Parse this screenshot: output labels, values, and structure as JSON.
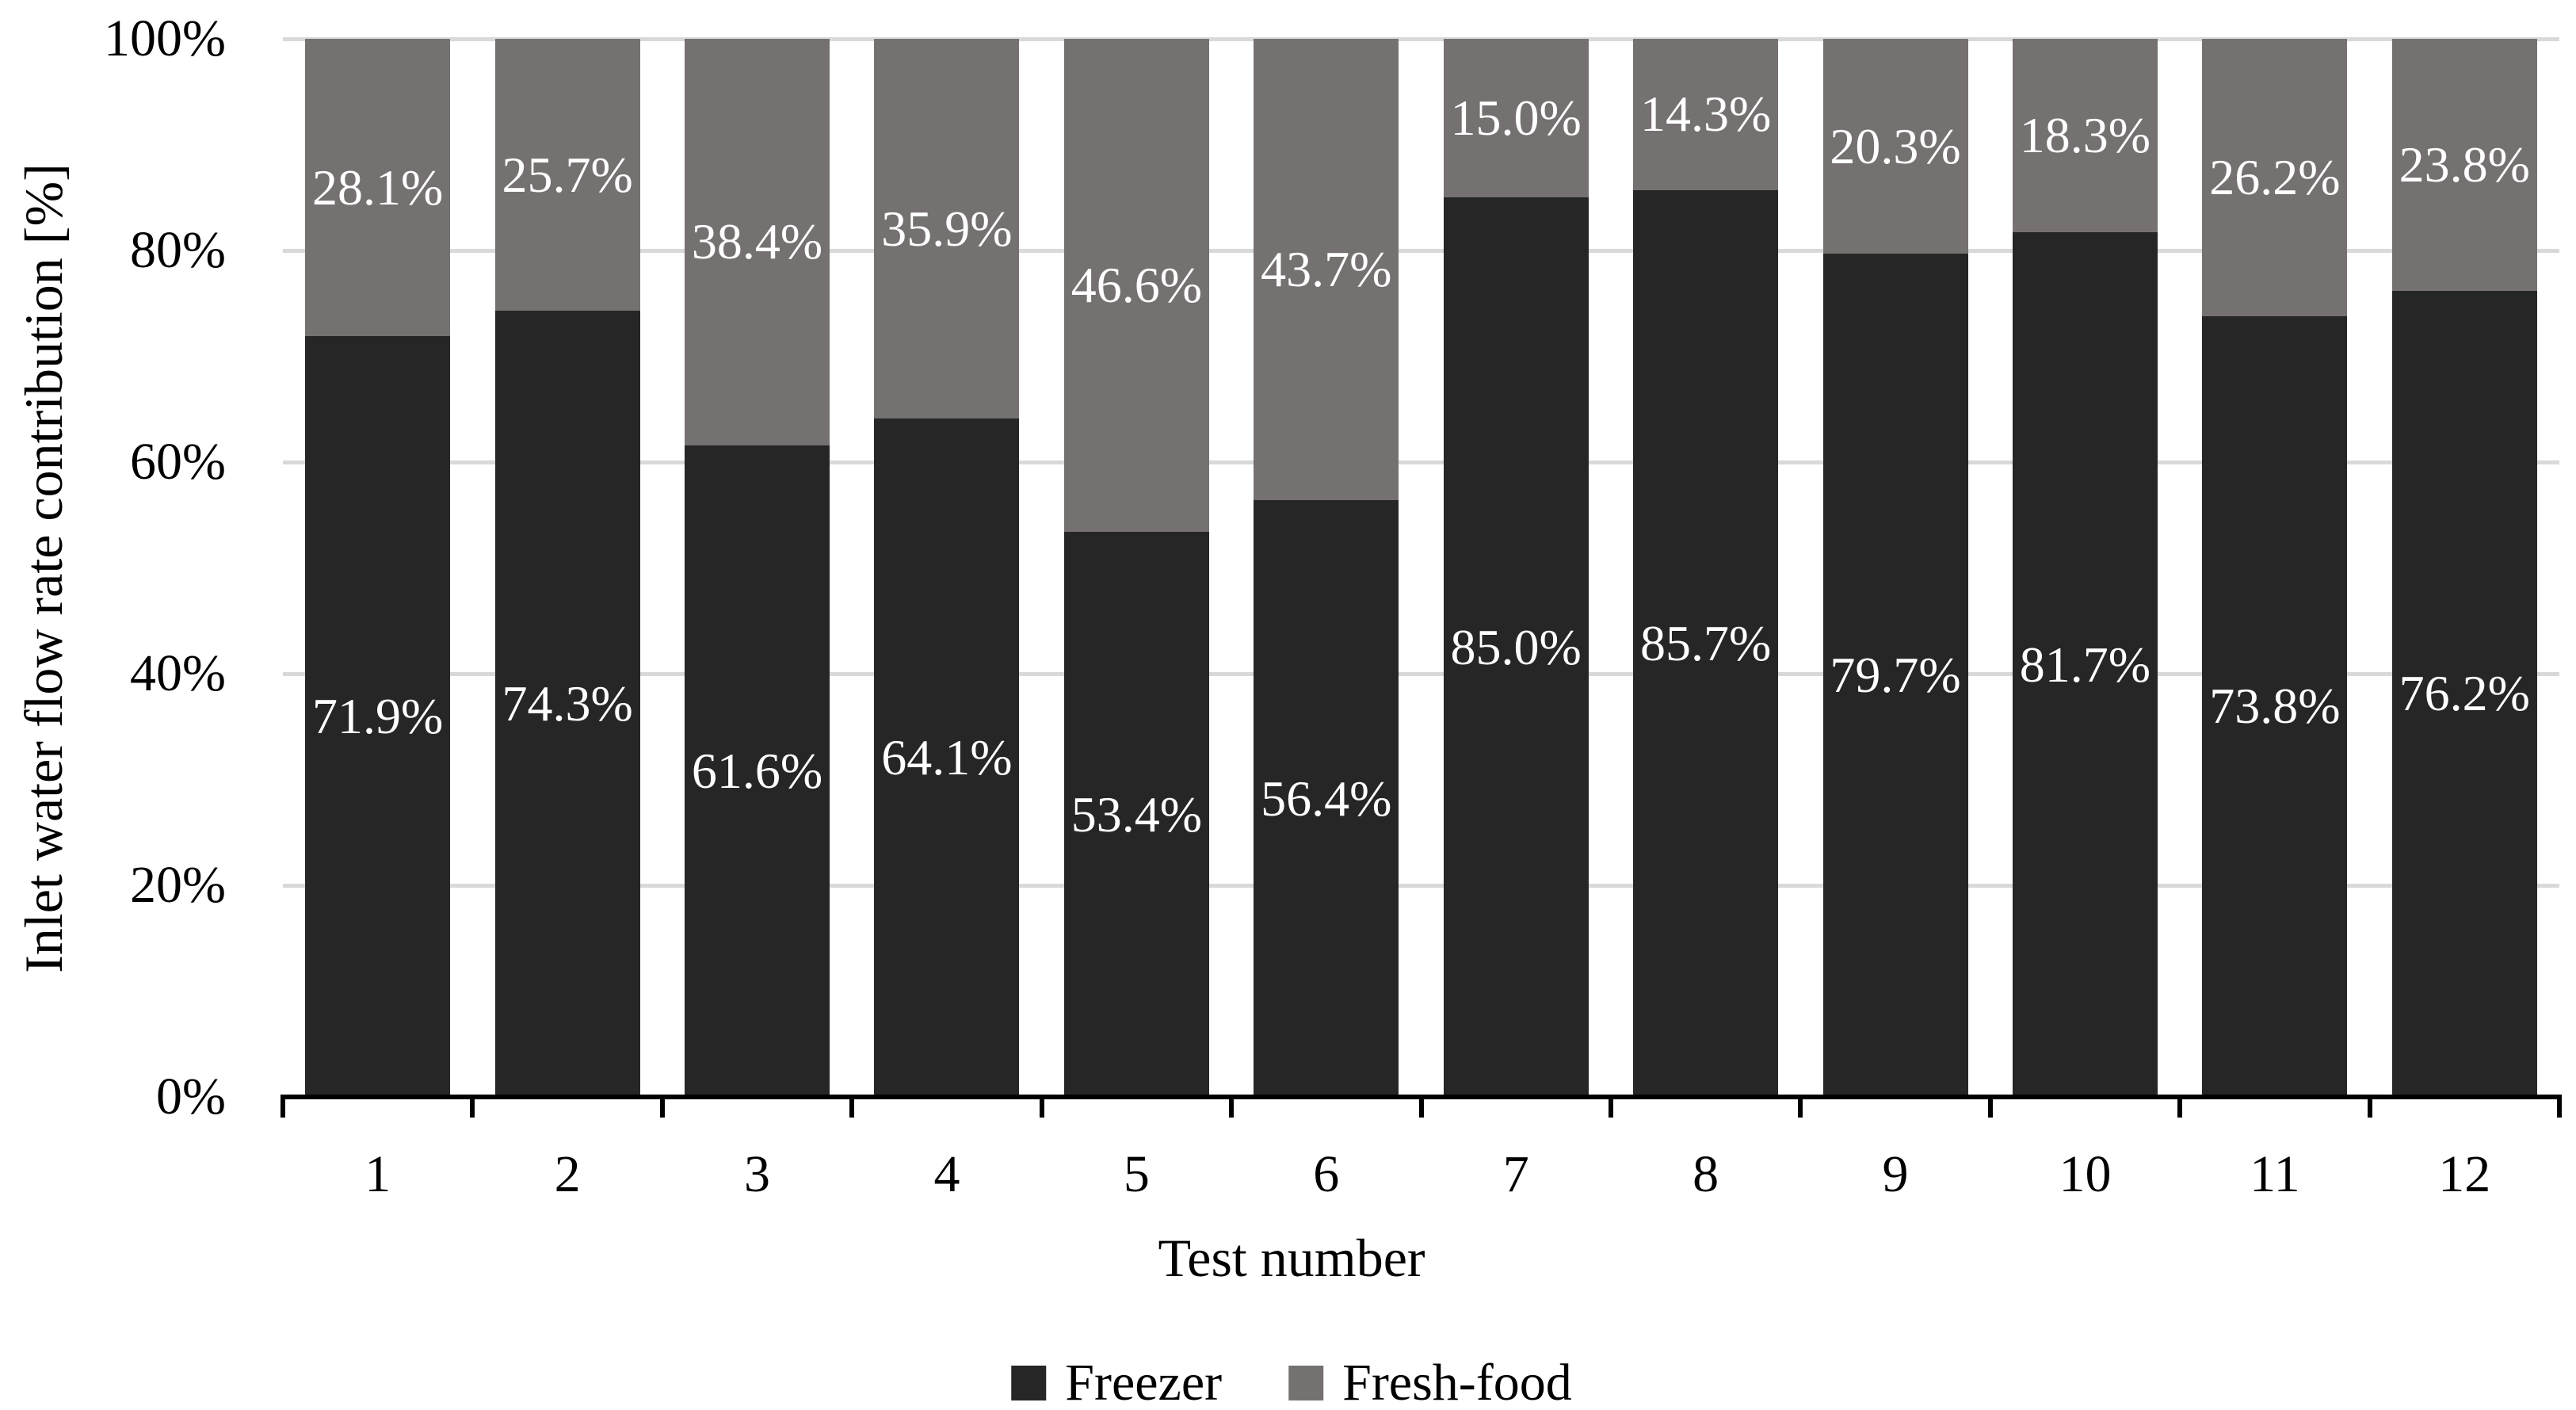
{
  "chart_data": {
    "type": "bar",
    "stacked": true,
    "orientation": "vertical",
    "title": "",
    "xlabel": "Test number",
    "ylabel": "Inlet water flow rate contribution [%]",
    "categories": [
      "1",
      "2",
      "3",
      "4",
      "5",
      "6",
      "7",
      "8",
      "9",
      "10",
      "11",
      "12"
    ],
    "series": [
      {
        "name": "Freezer",
        "color": "#262626",
        "values": [
          71.9,
          74.3,
          61.6,
          64.1,
          53.4,
          56.4,
          85.0,
          85.7,
          79.7,
          81.7,
          73.8,
          76.2
        ],
        "labels": [
          "71.9%",
          "74.3%",
          "61.6%",
          "64.1%",
          "53.4%",
          "56.4%",
          "85.0%",
          "85.7%",
          "79.7%",
          "81.7%",
          "73.8%",
          "76.2%"
        ]
      },
      {
        "name": "Fresh-food",
        "color": "#767171",
        "values": [
          28.1,
          25.7,
          38.4,
          35.9,
          46.6,
          43.7,
          15.0,
          14.3,
          20.3,
          18.3,
          26.2,
          23.8
        ],
        "labels": [
          "28.1%",
          "25.7%",
          "38.4%",
          "35.9%",
          "46.6%",
          "43.7%",
          "15.0%",
          "14.3%",
          "20.3%",
          "18.3%",
          "26.2%",
          "23.8%"
        ]
      }
    ],
    "ylim": [
      0,
      100
    ],
    "yticks": [
      {
        "value": 0,
        "label": "0%"
      },
      {
        "value": 20,
        "label": "20%"
      },
      {
        "value": 40,
        "label": "40%"
      },
      {
        "value": 60,
        "label": "60%"
      },
      {
        "value": 80,
        "label": "80%"
      },
      {
        "value": 100,
        "label": "100%"
      }
    ],
    "grid": true,
    "gridline_color": "#d9d9d9",
    "axis_color": "#000000",
    "data_label_color": "#ffffff",
    "legend_position": "bottom",
    "legend": [
      {
        "label": "Freezer",
        "color": "#262626"
      },
      {
        "label": "Fresh-food",
        "color": "#767171"
      }
    ]
  }
}
